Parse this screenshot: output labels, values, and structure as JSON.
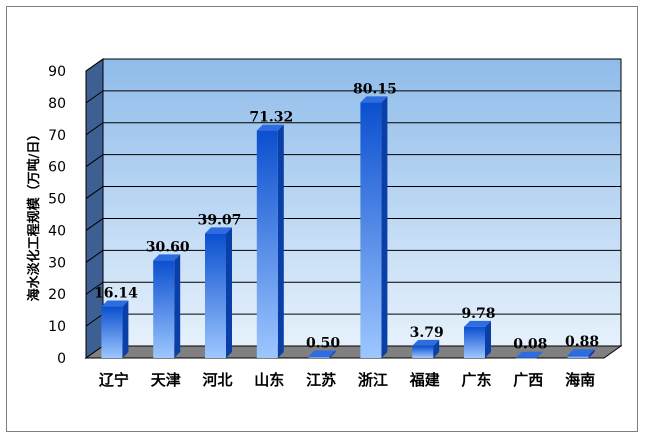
{
  "chart_data": {
    "type": "bar",
    "title": "",
    "xlabel": "",
    "ylabel": "海水淡化工程规模（万吨/日）",
    "ylim": [
      0,
      90
    ],
    "yticks": [
      0,
      10,
      20,
      30,
      40,
      50,
      60,
      70,
      80,
      90
    ],
    "grid": true,
    "legend": "none",
    "categories": [
      "辽宁",
      "天津",
      "河北",
      "山东",
      "江苏",
      "浙江",
      "福建",
      "广东",
      "广西",
      "海南"
    ],
    "values": [
      16.14,
      30.6,
      39.07,
      71.32,
      0.5,
      80.15,
      3.79,
      9.78,
      0.08,
      0.88
    ],
    "value_labels": [
      "16.14",
      "30.60",
      "39.07",
      "71.32",
      "0.50",
      "80.15",
      "3.79",
      "9.78",
      "0.08",
      "0.88"
    ],
    "colors": {
      "bar_light": "#9ec7ff",
      "bar_dark": "#0b4fcf",
      "bar_top": "#2e6de0",
      "bar_side": "#0a3fa8",
      "wall_top": "#8fbcea",
      "wall_bottom": "#e6f1fc",
      "side_wall": "#3d5f92",
      "floor": "#808080",
      "gridline": "#000000"
    }
  }
}
